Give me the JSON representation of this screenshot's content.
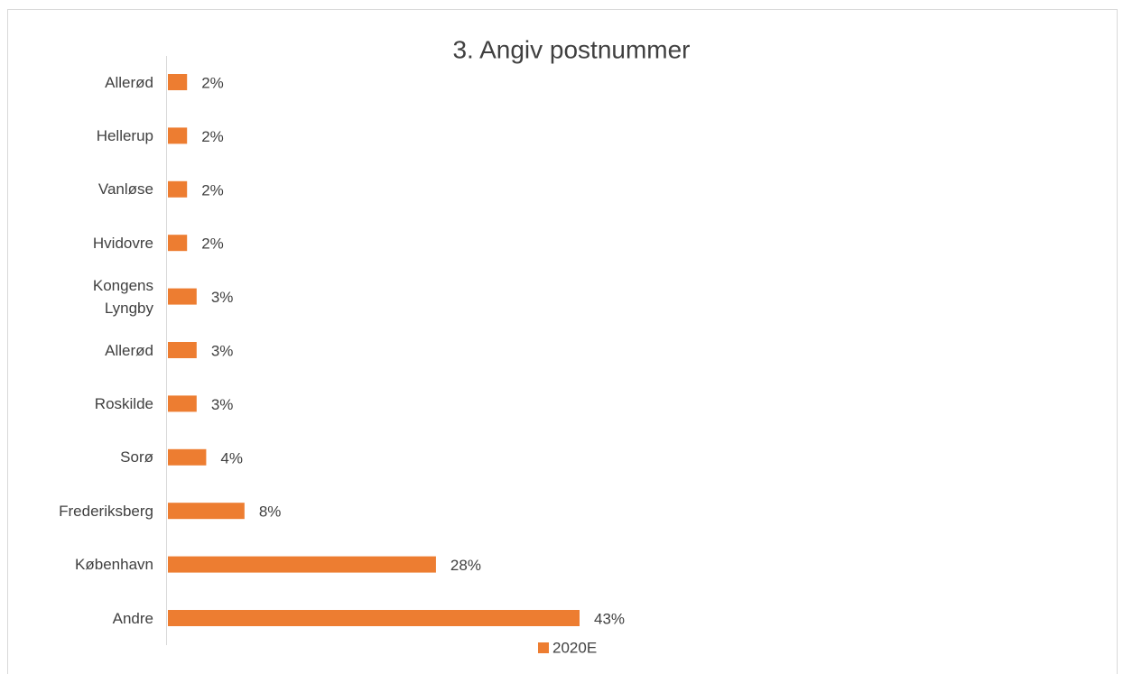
{
  "chart_data": {
    "type": "bar",
    "orientation": "horizontal",
    "title": "3. Angiv postnummer",
    "categories": [
      "Allerød",
      "Hellerup",
      "Vanløse",
      "Hvidovre",
      "Kongens Lyngby",
      "Allerød",
      "Roskilde",
      "Sorø",
      "Frederiksberg",
      "København",
      "Andre"
    ],
    "series": [
      {
        "name": "2020E",
        "color": "#ED7D31",
        "values": [
          2,
          2,
          2,
          2,
          3,
          3,
          3,
          4,
          8,
          28,
          43
        ],
        "value_labels": [
          "2%",
          "2%",
          "2%",
          "2%",
          "3%",
          "3%",
          "3%",
          "4%",
          "8%",
          "28%",
          "43%"
        ]
      }
    ],
    "legend": "bottom"
  }
}
